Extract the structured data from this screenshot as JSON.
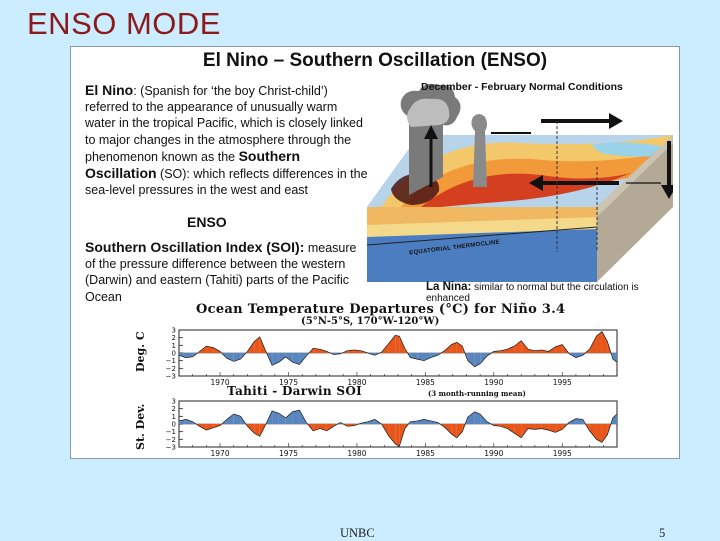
{
  "slide": {
    "title": "ENSO MODE",
    "footer_center": "UNBC",
    "page_number": "5"
  },
  "panel": {
    "title": "El Nino – Southern Oscillation (ENSO)",
    "el_nino_term": "El Nino",
    "el_nino_text_1": ": (Spanish for ‘the boy Christ-child’) referred to the appearance of unusually warm water in the tropical Pacific, which is closely linked to major changes in the atmosphere through the phenomenon known as the ",
    "so_term": "Southern Oscillation",
    "el_nino_text_2": " (SO): which reflects differences in the sea-level pressures in the west and east",
    "enso_label": "ENSO",
    "soi_term": "Southern Oscillation Index (SOI):",
    "soi_text": " measure of the pressure difference between the western (Darwin) and eastern (Tahiti) parts of the Pacific Ocean",
    "diagram_title": "December - February Normal Conditions",
    "thermocline_label": "EQUATORIAL THERMOCLINE",
    "la_nina_term": "La Nina:",
    "la_nina_text": " similar to normal but the circulation is enhanced"
  },
  "chart_data": [
    {
      "type": "area",
      "title": "Ocean Temperature Departures (°C) for Niño 3.4",
      "subtitle": "(5°N-5°S, 170°W-120°W)",
      "ylabel": "Deg. C",
      "ylim": [
        -3,
        3
      ],
      "yticks": [
        3,
        2,
        1,
        0,
        -1,
        -2,
        -3
      ],
      "xticks": [
        "1970",
        "1975",
        "1980",
        "1985",
        "1990",
        "1995"
      ],
      "xrange": [
        1967,
        1999
      ],
      "positive_color": "#e8561a",
      "negative_color": "#5a86c0",
      "x": [
        1967.0,
        1967.5,
        1968.0,
        1968.5,
        1969.0,
        1969.5,
        1970.0,
        1970.5,
        1971.0,
        1971.5,
        1972.0,
        1972.5,
        1972.9,
        1973.3,
        1973.8,
        1974.3,
        1974.8,
        1975.3,
        1975.8,
        1976.3,
        1976.8,
        1977.3,
        1977.8,
        1978.3,
        1978.8,
        1979.3,
        1979.8,
        1980.3,
        1980.8,
        1981.3,
        1981.8,
        1982.3,
        1982.8,
        1983.1,
        1983.5,
        1983.9,
        1984.4,
        1984.9,
        1985.4,
        1985.9,
        1986.4,
        1986.9,
        1987.3,
        1987.7,
        1988.1,
        1988.6,
        1989.0,
        1989.5,
        1990.0,
        1990.5,
        1991.0,
        1991.5,
        1992.0,
        1992.5,
        1993.0,
        1993.5,
        1994.0,
        1994.5,
        1995.0,
        1995.5,
        1996.0,
        1996.5,
        1997.0,
        1997.5,
        1997.9,
        1998.3,
        1998.7,
        1999.0
      ],
      "y": [
        -0.3,
        -0.6,
        -0.5,
        0.2,
        0.9,
        0.7,
        0.2,
        -0.7,
        -1.1,
        -0.8,
        0.2,
        1.5,
        2.1,
        0.4,
        -1.6,
        -1.2,
        -0.5,
        -1.2,
        -1.5,
        -0.4,
        0.6,
        0.5,
        0.2,
        -0.2,
        -0.1,
        0.3,
        0.4,
        0.3,
        0.0,
        -0.3,
        0.1,
        1.2,
        2.3,
        2.2,
        0.6,
        -0.6,
        -0.8,
        -1.0,
        -0.6,
        -0.3,
        0.3,
        1.1,
        1.4,
        0.9,
        -1.0,
        -1.8,
        -1.4,
        -0.4,
        0.2,
        0.3,
        0.5,
        0.9,
        1.6,
        0.5,
        0.3,
        0.4,
        0.2,
        0.8,
        1.1,
        -0.1,
        -0.6,
        -0.3,
        0.5,
        2.2,
        2.8,
        1.5,
        -0.8,
        -1.2
      ]
    },
    {
      "type": "area",
      "title": "Tahiti - Darwin SOI",
      "subtitle": "(3 month-running mean)",
      "ylabel": "St. Dev.",
      "ylim": [
        -3,
        3
      ],
      "yticks": [
        3,
        2,
        1,
        0,
        -1,
        -2,
        -3
      ],
      "xticks": [
        "1970",
        "1975",
        "1980",
        "1985",
        "1990",
        "1995"
      ],
      "xrange": [
        1967,
        1999
      ],
      "positive_color": "#5a86c0",
      "negative_color": "#e8561a",
      "x": [
        1967.0,
        1967.5,
        1968.0,
        1968.5,
        1969.0,
        1969.5,
        1970.0,
        1970.5,
        1971.0,
        1971.5,
        1972.0,
        1972.5,
        1972.9,
        1973.3,
        1973.8,
        1974.3,
        1974.8,
        1975.3,
        1975.8,
        1976.3,
        1976.8,
        1977.3,
        1977.8,
        1978.3,
        1978.8,
        1979.3,
        1979.8,
        1980.3,
        1980.8,
        1981.3,
        1981.8,
        1982.3,
        1982.8,
        1983.1,
        1983.5,
        1983.9,
        1984.4,
        1984.9,
        1985.4,
        1985.9,
        1986.4,
        1986.9,
        1987.3,
        1987.7,
        1988.1,
        1988.6,
        1989.0,
        1989.5,
        1990.0,
        1990.5,
        1991.0,
        1991.5,
        1992.0,
        1992.5,
        1993.0,
        1993.5,
        1994.0,
        1994.5,
        1995.0,
        1995.5,
        1996.0,
        1996.5,
        1997.0,
        1997.5,
        1997.9,
        1998.3,
        1998.7,
        1999.0
      ],
      "y": [
        0.4,
        0.6,
        0.3,
        -0.3,
        -0.8,
        -0.5,
        -0.2,
        0.6,
        1.3,
        1.0,
        -0.3,
        -1.2,
        -1.6,
        -0.2,
        1.7,
        1.4,
        0.8,
        1.6,
        1.8,
        0.2,
        -0.9,
        -0.6,
        -0.9,
        -0.3,
        0.2,
        -0.3,
        -0.2,
        0.1,
        0.3,
        0.6,
        0.0,
        -1.5,
        -2.6,
        -2.9,
        -0.6,
        0.3,
        0.4,
        0.6,
        0.4,
        0.2,
        -0.4,
        -1.3,
        -1.8,
        -1.0,
        0.9,
        1.6,
        1.3,
        0.3,
        -0.2,
        -0.3,
        -0.6,
        -1.2,
        -1.8,
        -0.6,
        -0.7,
        -0.6,
        -0.8,
        -1.1,
        -0.7,
        0.2,
        0.7,
        0.6,
        -0.9,
        -2.0,
        -2.4,
        -1.4,
        0.8,
        1.3
      ]
    }
  ]
}
